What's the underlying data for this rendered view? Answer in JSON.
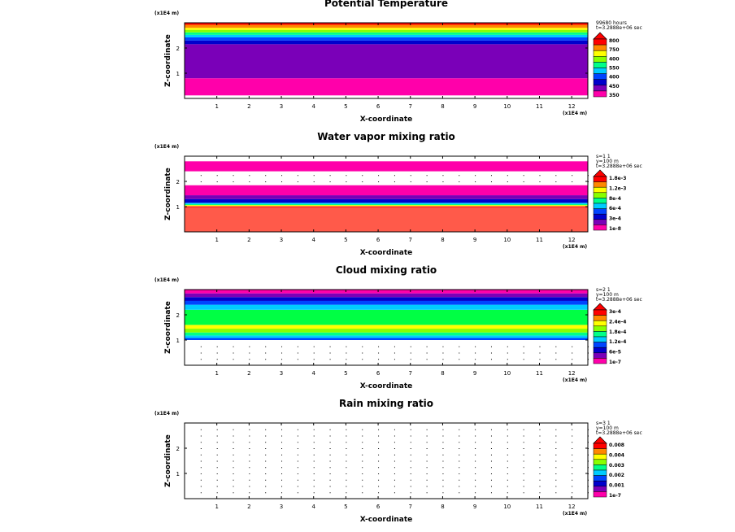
{
  "chart_data": [
    {
      "type": "heatmap",
      "title": "Potential Temperature",
      "xlabel": "X-coordinate",
      "ylabel": "Z-coordinate",
      "x_multiplier": "(x1E4 m)",
      "y_multiplier": "(x1E4 m)",
      "xlim": [
        0,
        12.5
      ],
      "ylim": [
        0,
        3.0
      ],
      "x_ticks": [
        "1",
        "2",
        "3",
        "4",
        "5",
        "6",
        "7",
        "8",
        "9",
        "10",
        "11",
        "12"
      ],
      "y_ticks": [
        "1",
        "2"
      ],
      "info": [
        "99680 hours",
        "t=3.2888e+06 sec"
      ],
      "colorbar_labels": [
        "800",
        "750",
        "400",
        "550",
        "400",
        "450",
        "350"
      ],
      "colorbar_colors": [
        "#ff0000",
        "#ff8800",
        "#ffff00",
        "#88ff00",
        "#00ff88",
        "#00ccff",
        "#0044ff",
        "#0000cc",
        "#7a00b8",
        "#ff00aa"
      ],
      "layers": [
        {
          "z0": 0.0,
          "z1": 0.12,
          "color": "#ffffff"
        },
        {
          "z0": 0.12,
          "z1": 0.8,
          "color": "#ff00aa"
        },
        {
          "z0": 0.8,
          "z1": 2.15,
          "color": "#7a00b8"
        },
        {
          "z0": 2.15,
          "z1": 2.3,
          "color": "#0000cc"
        },
        {
          "z0": 2.3,
          "z1": 2.42,
          "color": "#0044ff"
        },
        {
          "z0": 2.42,
          "z1": 2.52,
          "color": "#00ccff"
        },
        {
          "z0": 2.52,
          "z1": 2.62,
          "color": "#00ff88"
        },
        {
          "z0": 2.62,
          "z1": 2.72,
          "color": "#88ff00"
        },
        {
          "z0": 2.72,
          "z1": 2.8,
          "color": "#ffff00"
        },
        {
          "z0": 2.8,
          "z1": 2.92,
          "color": "#ff8800"
        },
        {
          "z0": 2.92,
          "z1": 3.0,
          "color": "#ff0000"
        }
      ]
    },
    {
      "type": "heatmap",
      "title": "Water vapor mixing ratio",
      "xlabel": "X-coordinate",
      "ylabel": "Z-coordinate",
      "x_multiplier": "(x1E4 m)",
      "y_multiplier": "(x1E4 m)",
      "xlim": [
        0,
        12.5
      ],
      "ylim": [
        0,
        3.0
      ],
      "x_ticks": [
        "1",
        "2",
        "3",
        "4",
        "5",
        "6",
        "7",
        "8",
        "9",
        "10",
        "11",
        "12"
      ],
      "y_ticks": [
        "1",
        "2"
      ],
      "info": [
        "s=1 1",
        "y=100 m",
        "t=3.2888e+06 sec"
      ],
      "colorbar_labels": [
        "1.8e-3",
        "1.2e-3",
        "8e-4",
        "6e-4",
        "3e-4",
        "1e-8"
      ],
      "colorbar_colors": [
        "#ff0000",
        "#ff8800",
        "#ffff00",
        "#88ff00",
        "#00ff88",
        "#00ccff",
        "#0044ff",
        "#0000cc",
        "#7a00b8",
        "#ff00aa"
      ],
      "layers": [
        {
          "z0": 0.0,
          "z1": 0.95,
          "color": "#ff5a4a"
        },
        {
          "z0": 0.95,
          "z1": 1.02,
          "color": "#ff3030"
        },
        {
          "z0": 1.02,
          "z1": 1.06,
          "color": "#ffff00"
        },
        {
          "z0": 1.06,
          "z1": 1.1,
          "color": "#00ff88"
        },
        {
          "z0": 1.1,
          "z1": 1.15,
          "color": "#00ccff"
        },
        {
          "z0": 1.15,
          "z1": 1.3,
          "color": "#0000cc"
        },
        {
          "z0": 1.3,
          "z1": 1.45,
          "color": "#7a00b8"
        },
        {
          "z0": 1.45,
          "z1": 1.85,
          "color": "#ff00aa"
        },
        {
          "z0": 1.85,
          "z1": 2.4,
          "color": "#ffffff"
        },
        {
          "z0": 2.4,
          "z1": 2.8,
          "color": "#ff00aa"
        },
        {
          "z0": 2.8,
          "z1": 3.0,
          "color": "#ffffff"
        }
      ]
    },
    {
      "type": "heatmap",
      "title": "Cloud mixing ratio",
      "xlabel": "X-coordinate",
      "ylabel": "Z-coordinate",
      "x_multiplier": "(x1E4 m)",
      "y_multiplier": "(x1E4 m)",
      "xlim": [
        0,
        12.5
      ],
      "ylim": [
        0,
        3.0
      ],
      "x_ticks": [
        "1",
        "2",
        "3",
        "4",
        "5",
        "6",
        "7",
        "8",
        "9",
        "10",
        "11",
        "12"
      ],
      "y_ticks": [
        "1",
        "2"
      ],
      "info": [
        "s=2 1",
        "y=100 m",
        "t=3.2888e+06 sec"
      ],
      "colorbar_labels": [
        "3e-4",
        "2.4e-4",
        "1.8e-4",
        "1.2e-4",
        "6e-5",
        "1e-7"
      ],
      "colorbar_colors": [
        "#ff0000",
        "#ff8800",
        "#ffff00",
        "#88ff00",
        "#00ff88",
        "#00ccff",
        "#0044ff",
        "#0000cc",
        "#7a00b8",
        "#ff00aa"
      ],
      "layers": [
        {
          "z0": 0.0,
          "z1": 1.0,
          "color": "#ffffff"
        },
        {
          "z0": 1.0,
          "z1": 1.08,
          "color": "#0044ff"
        },
        {
          "z0": 1.08,
          "z1": 1.18,
          "color": "#00ccff"
        },
        {
          "z0": 1.18,
          "z1": 1.3,
          "color": "#00ff88"
        },
        {
          "z0": 1.3,
          "z1": 1.45,
          "color": "#88ff00"
        },
        {
          "z0": 1.45,
          "z1": 1.6,
          "color": "#ffff00"
        },
        {
          "z0": 1.6,
          "z1": 2.2,
          "color": "#00ff44"
        },
        {
          "z0": 2.2,
          "z1": 2.4,
          "color": "#00ccff"
        },
        {
          "z0": 2.4,
          "z1": 2.55,
          "color": "#0044ff"
        },
        {
          "z0": 2.55,
          "z1": 2.7,
          "color": "#0000cc"
        },
        {
          "z0": 2.7,
          "z1": 2.85,
          "color": "#7a00b8"
        },
        {
          "z0": 2.85,
          "z1": 3.0,
          "color": "#ff00aa"
        }
      ]
    },
    {
      "type": "heatmap",
      "title": "Rain mixing ratio",
      "xlabel": "X-coordinate",
      "ylabel": "Z-coordinate",
      "x_multiplier": "(x1E4 m)",
      "y_multiplier": "(x1E4 m)",
      "xlim": [
        0,
        12.5
      ],
      "ylim": [
        0,
        3.0
      ],
      "x_ticks": [
        "1",
        "2",
        "3",
        "4",
        "5",
        "6",
        "7",
        "8",
        "9",
        "10",
        "11",
        "12"
      ],
      "y_ticks": [
        "1",
        "2"
      ],
      "info": [
        "s=3 1",
        "y=100 m",
        "t=3.2888e+06 sec"
      ],
      "colorbar_labels": [
        "0.008",
        "0.004",
        "0.003",
        "0.002",
        "0.001",
        "1e-7"
      ],
      "colorbar_colors": [
        "#ff0000",
        "#ff8800",
        "#ffff00",
        "#88ff00",
        "#00ff88",
        "#00ccff",
        "#0044ff",
        "#0000cc",
        "#7a00b8",
        "#ff00aa"
      ],
      "layers": []
    }
  ]
}
